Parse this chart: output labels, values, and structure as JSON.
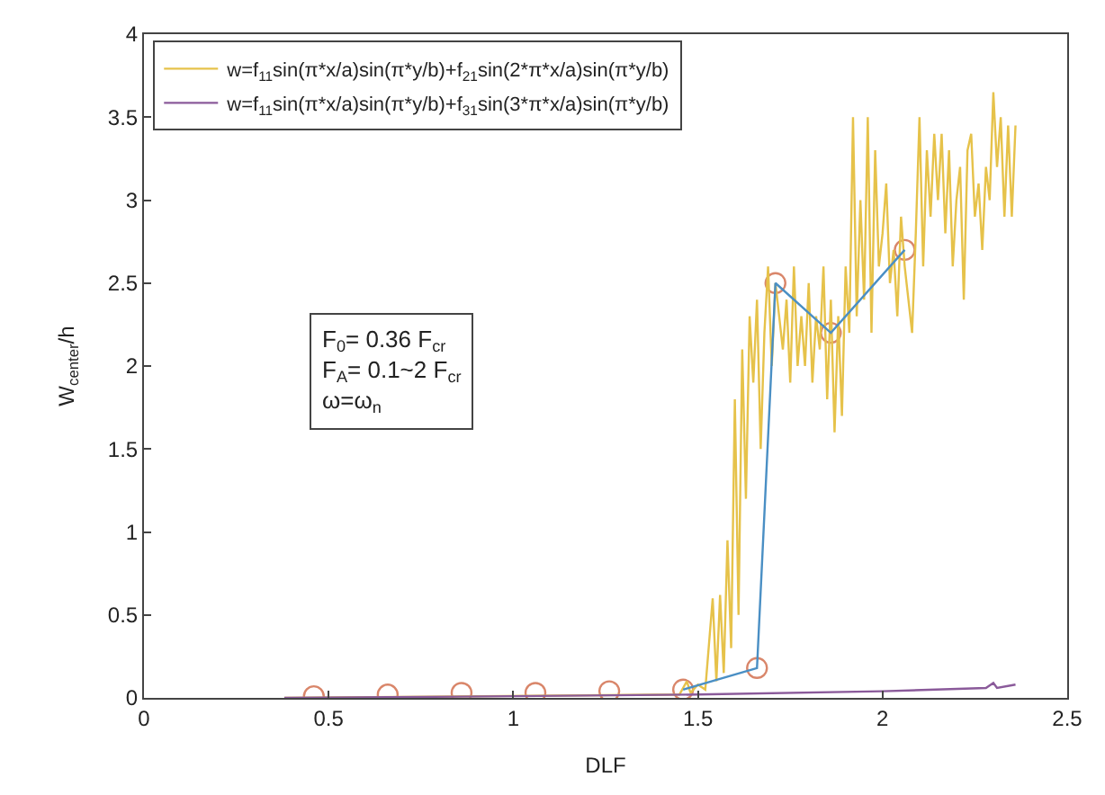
{
  "chart_data": {
    "type": "line",
    "xlabel": "DLF",
    "ylabel": "W$_{center}$/h",
    "xlim": [
      0,
      2.5
    ],
    "xticks": [
      0,
      0.5,
      1,
      1.5,
      2,
      2.5
    ],
    "ylim": [
      0,
      4
    ],
    "yticks": [
      0,
      0.5,
      1,
      1.5,
      2,
      2.5,
      3,
      3.5,
      4
    ],
    "legend": "top left",
    "annotations": [
      "F$_{0}$= 0.36 F$_{cr}$",
      "F$_{A}$= 0.1~2 F$_{cr}$",
      "ω=ω$_{n}$"
    ],
    "series": [
      {
        "type": "scatter",
        "marker": "circle",
        "color": "#d9866a",
        "x": [
          0.46,
          0.66,
          0.86,
          1.06,
          1.26,
          1.46,
          1.66,
          1.71,
          1.86,
          2.06
        ],
        "values": [
          0.01,
          0.02,
          0.03,
          0.03,
          0.04,
          0.05,
          0.18,
          2.5,
          2.2,
          2.7
        ]
      },
      {
        "name": "w=f$_{11}$sin(π*x/a)sin(π*y/b)+f$_{21}$sin(2*π*x/a)sin(π*y/b)",
        "color": "#e6c24a",
        "x": [
          0.38,
          1.45,
          1.47,
          1.48,
          1.5,
          1.52,
          1.54,
          1.55,
          1.56,
          1.57,
          1.58,
          1.59,
          1.6,
          1.61,
          1.62,
          1.63,
          1.64,
          1.65,
          1.66,
          1.67,
          1.68,
          1.69,
          1.7,
          1.71,
          1.72,
          1.73,
          1.74,
          1.75,
          1.76,
          1.77,
          1.78,
          1.79,
          1.8,
          1.81,
          1.82,
          1.83,
          1.84,
          1.85,
          1.86,
          1.87,
          1.88,
          1.89,
          1.9,
          1.91,
          1.92,
          1.93,
          1.94,
          1.95,
          1.96,
          1.97,
          1.98,
          1.99,
          2.0,
          2.01,
          2.02,
          2.03,
          2.04,
          2.05,
          2.06,
          2.07,
          2.08,
          2.09,
          2.1,
          2.11,
          2.12,
          2.13,
          2.14,
          2.15,
          2.16,
          2.17,
          2.18,
          2.19,
          2.2,
          2.21,
          2.22,
          2.23,
          2.24,
          2.25,
          2.26,
          2.27,
          2.28,
          2.29,
          2.3,
          2.31,
          2.32,
          2.33,
          2.34,
          2.35,
          2.36
        ],
        "values": [
          0.0,
          0.02,
          0.1,
          0.03,
          0.08,
          0.05,
          0.6,
          0.1,
          0.62,
          0.15,
          0.95,
          0.3,
          1.8,
          0.5,
          2.1,
          1.2,
          2.3,
          1.9,
          2.4,
          1.5,
          2.2,
          2.6,
          2.0,
          2.5,
          2.3,
          2.1,
          2.4,
          1.9,
          2.6,
          2.0,
          2.3,
          2.0,
          2.5,
          1.9,
          2.3,
          2.1,
          2.6,
          1.8,
          2.4,
          1.6,
          2.3,
          1.7,
          2.6,
          2.2,
          3.5,
          2.3,
          3.0,
          2.4,
          3.5,
          2.2,
          3.3,
          2.6,
          2.8,
          3.1,
          2.5,
          2.7,
          2.3,
          2.9,
          2.6,
          2.4,
          2.2,
          2.8,
          3.5,
          2.6,
          3.3,
          2.9,
          3.4,
          3.0,
          3.4,
          2.8,
          3.3,
          2.6,
          3.0,
          3.2,
          2.4,
          3.3,
          3.4,
          2.9,
          3.1,
          2.7,
          3.2,
          3.0,
          3.65,
          3.2,
          3.5,
          2.9,
          3.45,
          2.9,
          3.45
        ]
      },
      {
        "name": "w=f$_{11}$sin(π*x/a)sin(π*y/b)+f$_{31}$sin(3*π*x/a)sin(π*y/b)",
        "color": "#8a5a9a",
        "x": [
          0.38,
          1.0,
          1.5,
          2.0,
          2.28,
          2.3,
          2.31,
          2.36
        ],
        "values": [
          0.0,
          0.01,
          0.02,
          0.04,
          0.06,
          0.09,
          0.06,
          0.08
        ]
      },
      {
        "color": "#4a8fc4",
        "x": [
          1.46,
          1.66,
          1.71,
          1.86,
          2.06
        ],
        "values": [
          0.05,
          0.18,
          2.5,
          2.2,
          2.7
        ]
      }
    ]
  }
}
